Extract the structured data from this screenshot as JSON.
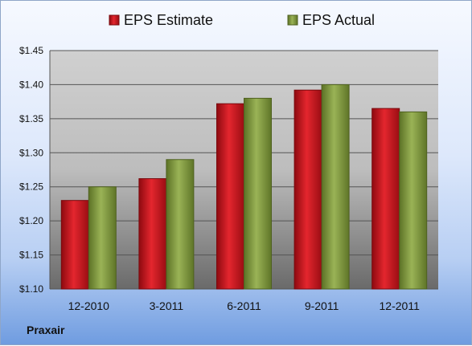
{
  "chart_data": {
    "type": "bar",
    "categories": [
      "12-2010",
      "3-2011",
      "6-2011",
      "9-2011",
      "12-2011"
    ],
    "series": [
      {
        "name": "EPS Estimate",
        "values": [
          1.23,
          1.262,
          1.372,
          1.392,
          1.365
        ],
        "color": "#c8141c"
      },
      {
        "name": "EPS Actual",
        "values": [
          1.25,
          1.29,
          1.38,
          1.4,
          1.36
        ],
        "color": "#7f9a3a"
      }
    ],
    "ylim": [
      1.1,
      1.45
    ],
    "yticks": [
      "$1.10",
      "$1.15",
      "$1.20",
      "$1.25",
      "$1.30",
      "$1.35",
      "$1.40",
      "$1.45"
    ],
    "ytick_values": [
      1.1,
      1.15,
      1.2,
      1.25,
      1.3,
      1.35,
      1.4,
      1.45
    ],
    "grid": true,
    "legend_position": "top"
  },
  "company": "Praxair"
}
